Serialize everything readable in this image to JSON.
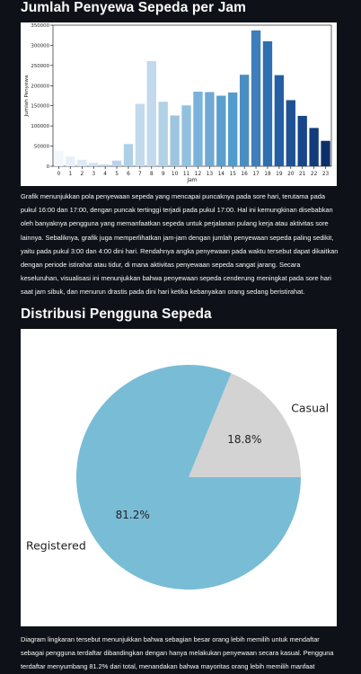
{
  "sections": {
    "hourly": {
      "title": "Jumlah Penyewa Sepeda per Jam",
      "description": "Grafik menunjukkan pola penyewaan sepeda yang mencapai puncaknya pada sore hari, terutama pada pukul 16:00 dan 17:00, dengan puncak tertinggi terjadi pada pukul 17:00. Hal ini kemungkinan disebabkan oleh banyaknya pengguna yang memanfaatkan sepeda untuk perjalanan pulang kerja atau aktivitas sore lainnya. Sebaliknya, grafik juga memperlihatkan jam-jam dengan jumlah penyewaan sepeda paling sedikit, yaitu pada pukul 3:00 dan 4:00 dini hari. Rendahnya angka penyewaan pada waktu tersebut dapat dikaitkan dengan periode istirahat atau tidur, di mana aktivitas penyewaan sepeda sangat jarang. Secara keseluruhan, visualisasi ini menunjukkan bahwa penyewaan sepeda cenderung meningkat pada sore hari saat jam sibuk, dan menurun drastis pada dini hari ketika kebanyakan orang sedang beristirahat."
    },
    "users": {
      "title": "Distribusi Pengguna Sepeda",
      "description": "Diagram lingkaran tersebut menunjukkan bahwa sebagian besar orang lebih memilih untuk mendaftar sebagai pengguna terdaftar dibandingkan dengan hanya melakukan penyewaan secara kasual. Pengguna terdaftar menyumbang 81.2% dari total, menandakan bahwa mayoritas orang lebih memilih manfaat"
    }
  },
  "chart_data": [
    {
      "type": "bar",
      "title": "",
      "xlabel": "Jam",
      "ylabel": "Jumlah Penyewa",
      "ylim": [
        0,
        350000
      ],
      "yticks": [
        0,
        50000,
        100000,
        150000,
        200000,
        250000,
        300000,
        350000
      ],
      "categories": [
        "0",
        "1",
        "2",
        "3",
        "4",
        "5",
        "6",
        "7",
        "8",
        "9",
        "10",
        "11",
        "12",
        "13",
        "14",
        "15",
        "16",
        "17",
        "18",
        "19",
        "20",
        "21",
        "22",
        "23"
      ],
      "values": [
        39000,
        24000,
        16000,
        8000,
        4500,
        14000,
        55000,
        155000,
        261000,
        160000,
        126000,
        151000,
        185000,
        184000,
        175000,
        183000,
        227000,
        337000,
        310000,
        226000,
        164000,
        125000,
        95000,
        63000
      ],
      "colors": [
        "#f2f7fd",
        "#e7f0fa",
        "#dce9f6",
        "#d0e2f2",
        "#c5daee",
        "#b9d3ea",
        "#add0e6",
        "#c3daed",
        "#c2d9ee",
        "#b1d1e7",
        "#9dc5e0",
        "#92c0df",
        "#79b2da",
        "#6fa9d4",
        "#5a9fcd",
        "#519ccc",
        "#4a8dc3",
        "#3d7ebb",
        "#2e6fad",
        "#255ea3",
        "#1f5295",
        "#17468a",
        "#123b79",
        "#0d2f69"
      ],
      "grid": false,
      "legend": "none"
    },
    {
      "type": "pie",
      "slices": [
        {
          "label": "Casual",
          "value": 18.8,
          "pct_label": "18.8%",
          "color": "#d3d3d3"
        },
        {
          "label": "Registered",
          "value": 81.2,
          "pct_label": "81.2%",
          "color": "#79bcd6"
        }
      ],
      "legend": "none"
    }
  ]
}
